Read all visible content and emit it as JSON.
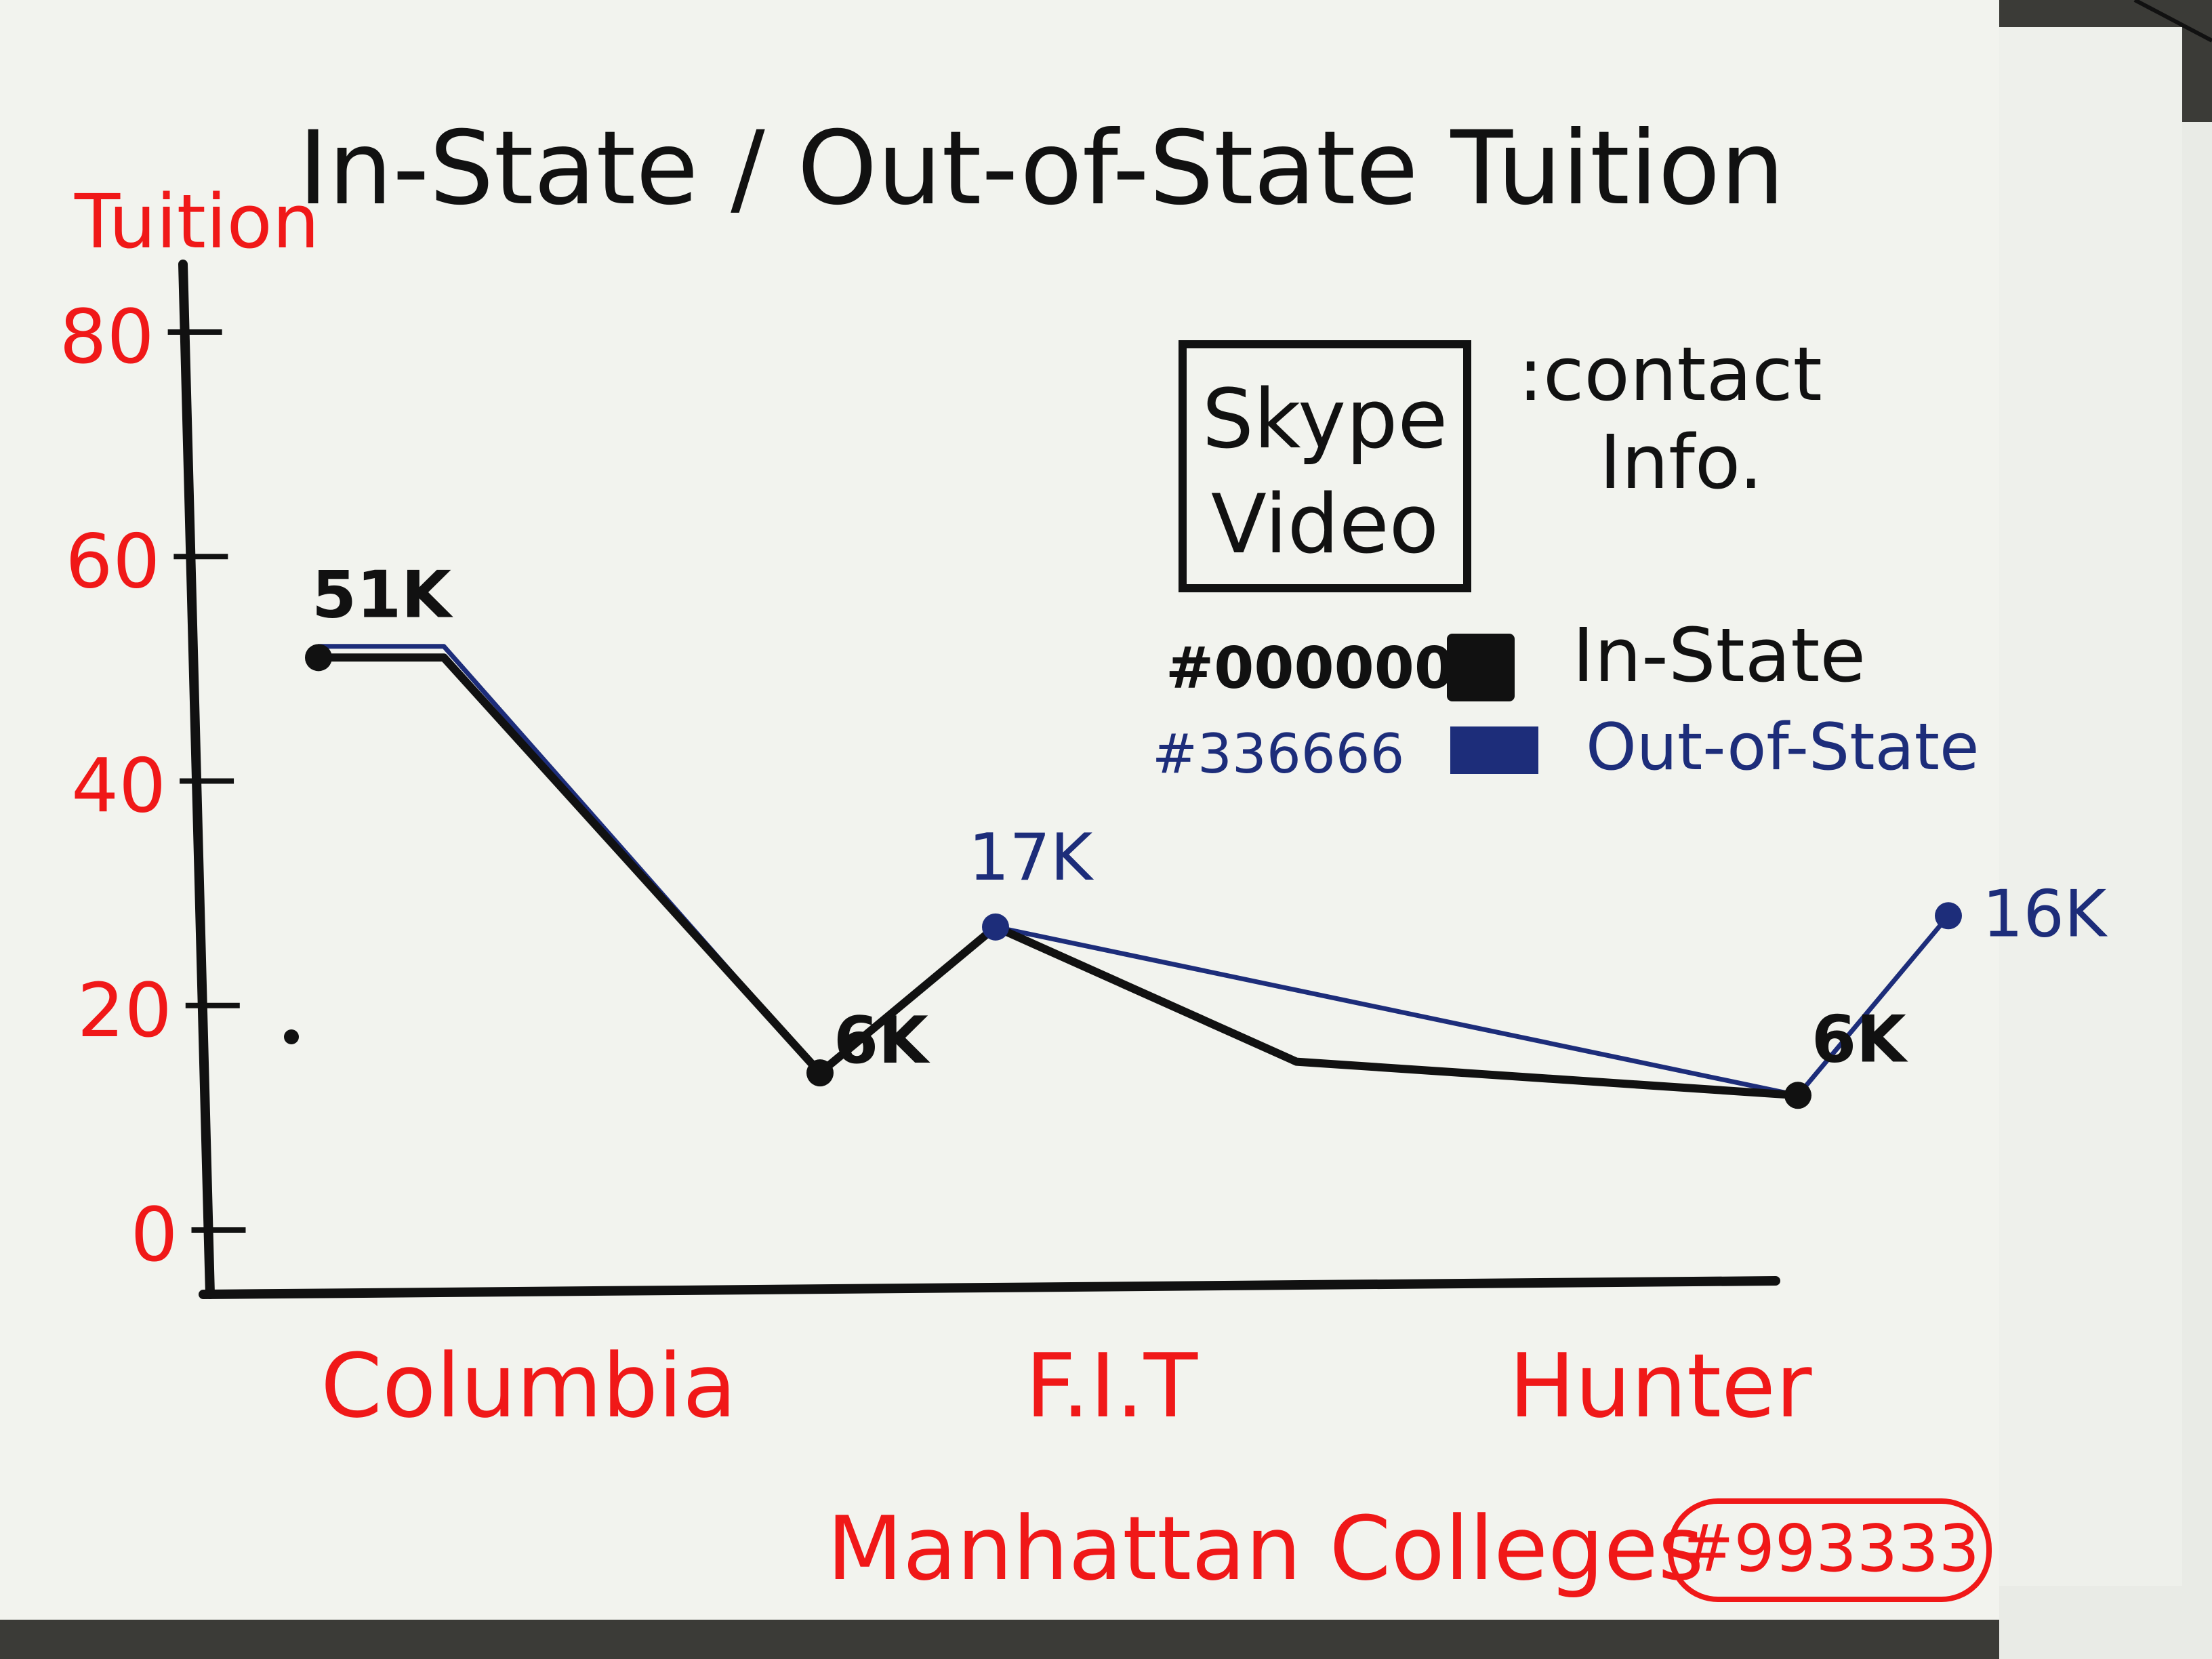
{
  "chart_data": {
    "type": "line",
    "title": "In-State / Out-of-State Tuition",
    "ylabel": "Tuition",
    "xlabel": "Manhattan Colleges",
    "ylim": [
      0,
      80
    ],
    "yticks": [
      0,
      20,
      40,
      60,
      80
    ],
    "categories": [
      "Columbia",
      "F.I.T",
      "Hunter"
    ],
    "x_positions": [
      0.0,
      0.25,
      1.0,
      1.35,
      1.95,
      2.95,
      3.25
    ],
    "series": [
      {
        "name": "In-State",
        "color": "#000000",
        "points": [
          [
            0.0,
            51
          ],
          [
            0.25,
            51
          ],
          [
            1.0,
            14
          ],
          [
            1.35,
            27
          ],
          [
            1.95,
            15
          ],
          [
            2.95,
            12
          ]
        ]
      },
      {
        "name": "Out-of-State",
        "color": "#336666",
        "points": [
          [
            0.0,
            52
          ],
          [
            0.25,
            52
          ],
          [
            1.0,
            14
          ],
          [
            1.35,
            27
          ],
          [
            2.95,
            12
          ],
          [
            3.25,
            28
          ]
        ]
      }
    ],
    "data_labels": [
      {
        "text": "51K",
        "series": "In-State"
      },
      {
        "text": "6K",
        "series": "In-State"
      },
      {
        "text": "17K",
        "series": "Out-of-State"
      },
      {
        "text": "6K",
        "series": "In-State"
      },
      {
        "text": "16K",
        "series": "Out-of-State"
      }
    ],
    "legend": {
      "placement": "top-right",
      "entries": [
        {
          "code": "#000000",
          "label": "In-State",
          "color": "#000000"
        },
        {
          "code": "#336666",
          "label": "Out-of-State",
          "color": "#1d2d7a"
        }
      ]
    },
    "info_box": {
      "line1": "Skype",
      "line2": "Video",
      "caption_line1": ":contact",
      "caption_line2": "Info."
    },
    "stamp": "#993333",
    "grid": false
  },
  "colors": {
    "paper": "#f2f3ee",
    "ink_black": "#111111",
    "ink_red": "#f01818",
    "ink_blue": "#1d2d7a"
  }
}
